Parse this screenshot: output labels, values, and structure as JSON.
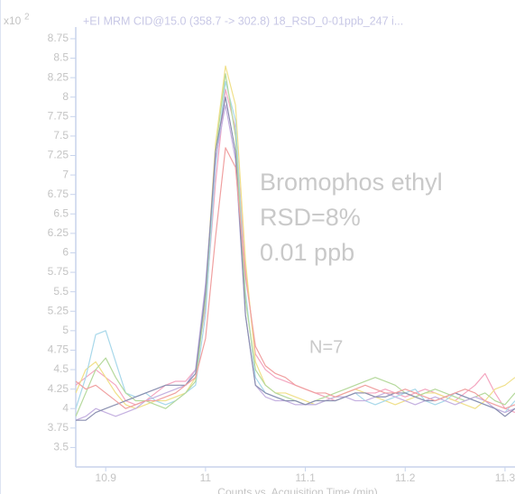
{
  "chart_data": {
    "type": "line",
    "title": "+EI MRM CID@15.0 (358.7 -> 302.8) 18_RSD_0-01ppb_247 i...",
    "y_multiplier": "x10",
    "y_multiplier_exponent": "2",
    "xlabel": "Counts vs. Acquisition Time (min)",
    "annotations": [
      "Bromophos ethyl",
      "RSD=8%",
      "0.01 ppb",
      "N=7"
    ],
    "xlim": [
      10.87,
      11.31
    ],
    "ylim": [
      3.25,
      8.9
    ],
    "xticks": [
      10.9,
      11,
      11.1,
      11.2,
      11.3
    ],
    "yticks": [
      3.5,
      3.75,
      4,
      4.25,
      4.5,
      4.75,
      5,
      5.25,
      5.5,
      5.75,
      6,
      6.25,
      6.5,
      6.75,
      7,
      7.25,
      7.5,
      7.75,
      8,
      8.25,
      8.5,
      8.75
    ],
    "x": [
      10.87,
      10.88,
      10.89,
      10.9,
      10.91,
      10.92,
      10.93,
      10.94,
      10.95,
      10.96,
      10.97,
      10.98,
      10.99,
      11,
      11.01,
      11.02,
      11.03,
      11.04,
      11.05,
      11.06,
      11.07,
      11.08,
      11.09,
      11.1,
      11.11,
      11.12,
      11.13,
      11.14,
      11.15,
      11.16,
      11.17,
      11.18,
      11.19,
      11.2,
      11.21,
      11.22,
      11.23,
      11.24,
      11.25,
      11.26,
      11.27,
      11.28,
      11.29,
      11.3,
      11.31
    ],
    "series": [
      {
        "color": "#f4a6c0",
        "values": [
          4.3,
          4.4,
          4.5,
          4.4,
          4.3,
          4.1,
          4.05,
          4.1,
          4.2,
          4.3,
          4.35,
          4.35,
          4.5,
          5.3,
          6.9,
          8.1,
          7.6,
          5.8,
          4.7,
          4.5,
          4.4,
          4.35,
          4.3,
          4.25,
          4.2,
          4.15,
          4.1,
          4.15,
          4.2,
          4.2,
          4.2,
          4.25,
          4.2,
          4.15,
          4.2,
          4.25,
          4.2,
          4.15,
          4.1,
          4.2,
          4.3,
          4.45,
          4.2,
          4.0,
          3.95
        ]
      },
      {
        "color": "#f0e08a",
        "values": [
          4.2,
          4.5,
          4.6,
          4.4,
          4.2,
          4.05,
          4.0,
          4.05,
          4.1,
          4.1,
          4.15,
          4.2,
          4.4,
          5.5,
          7.4,
          8.4,
          7.9,
          5.9,
          4.6,
          4.3,
          4.2,
          4.2,
          4.15,
          4.1,
          4.05,
          4.1,
          4.15,
          4.2,
          4.25,
          4.2,
          4.15,
          4.1,
          4.05,
          4.1,
          4.15,
          4.2,
          4.2,
          4.15,
          4.1,
          4.05,
          4.0,
          4.1,
          4.25,
          4.3,
          4.4
        ]
      },
      {
        "color": "#a8d8ea",
        "values": [
          4.0,
          4.4,
          4.95,
          5.0,
          4.6,
          4.2,
          4.15,
          4.2,
          4.1,
          4.05,
          4.1,
          4.2,
          4.3,
          5.2,
          7.1,
          8.2,
          7.7,
          5.5,
          4.4,
          4.2,
          4.15,
          4.1,
          4.1,
          4.05,
          4.05,
          4.1,
          4.1,
          4.15,
          4.2,
          4.1,
          4.05,
          4.1,
          4.15,
          4.2,
          4.25,
          4.1,
          4.05,
          4.1,
          4.2,
          4.15,
          4.1,
          4.05,
          4.0,
          3.95,
          4.1
        ]
      },
      {
        "color": "#b5d99c",
        "values": [
          3.9,
          4.2,
          4.5,
          4.65,
          4.4,
          4.2,
          4.1,
          4.1,
          4.05,
          4.0,
          4.1,
          4.2,
          4.35,
          5.4,
          7.3,
          8.3,
          7.5,
          5.4,
          4.5,
          4.3,
          4.2,
          4.15,
          4.1,
          4.05,
          4.1,
          4.15,
          4.2,
          4.25,
          4.3,
          4.35,
          4.4,
          4.35,
          4.3,
          4.2,
          4.15,
          4.2,
          4.25,
          4.2,
          4.15,
          4.1,
          4.15,
          4.2,
          4.1,
          4.05,
          4.2
        ]
      },
      {
        "color": "#c4b0e0",
        "values": [
          3.85,
          3.9,
          4.0,
          3.95,
          3.9,
          3.95,
          4.0,
          4.1,
          4.15,
          4.2,
          4.25,
          4.3,
          4.5,
          5.6,
          7.2,
          7.9,
          7.2,
          5.2,
          4.3,
          4.15,
          4.1,
          4.1,
          4.05,
          4.05,
          4.05,
          4.1,
          4.15,
          4.15,
          4.1,
          4.1,
          4.15,
          4.2,
          4.15,
          4.1,
          4.05,
          4.1,
          4.15,
          4.1,
          4.05,
          4.1,
          4.15,
          4.1,
          4.0,
          3.95,
          4.0
        ]
      },
      {
        "color": "#8a8fb0",
        "values": [
          3.85,
          3.85,
          3.95,
          4.0,
          4.05,
          4.1,
          4.15,
          4.2,
          4.25,
          4.3,
          4.3,
          4.3,
          4.45,
          5.5,
          7.3,
          8.0,
          7.3,
          5.2,
          4.3,
          4.2,
          4.15,
          4.1,
          4.1,
          4.05,
          4.1,
          4.1,
          4.1,
          4.15,
          4.2,
          4.2,
          4.15,
          4.15,
          4.2,
          4.2,
          4.15,
          4.1,
          4.1,
          4.15,
          4.2,
          4.15,
          4.1,
          4.05,
          4.0,
          3.9,
          4.0
        ]
      },
      {
        "color": "#f0a0a0",
        "values": [
          4.35,
          4.25,
          4.3,
          4.2,
          4.1,
          4.0,
          4.05,
          4.1,
          4.1,
          4.15,
          4.2,
          4.3,
          4.4,
          4.9,
          6.2,
          7.35,
          7.1,
          5.7,
          4.8,
          4.55,
          4.45,
          4.4,
          4.3,
          4.25,
          4.2,
          4.2,
          4.15,
          4.2,
          4.25,
          4.3,
          4.25,
          4.2,
          4.2,
          4.25,
          4.2,
          4.15,
          4.1,
          4.15,
          4.2,
          4.25,
          4.2,
          4.1,
          4.05,
          4.0,
          4.05
        ]
      }
    ]
  }
}
